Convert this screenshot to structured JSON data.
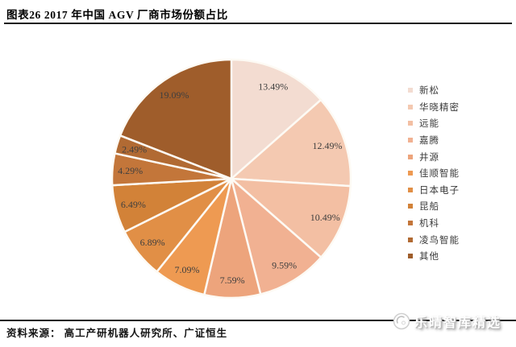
{
  "header": {
    "title": "图表26 2017 年中国 AGV 厂商市场份额占比"
  },
  "footer": {
    "source": "资料来源： 高工产研机器人研究所、广证恒生",
    "watermark": "乐晴智库精选"
  },
  "chart_data": {
    "type": "pie",
    "title": "2017 年中国 AGV 厂商市场份额占比",
    "categories": [
      "新松",
      "华晓精密",
      "远能",
      "嘉腾",
      "井源",
      "佳顺智能",
      "日本电子",
      "昆船",
      "机科",
      "凌鸟智能",
      "其他"
    ],
    "values": [
      13.49,
      12.49,
      10.49,
      9.59,
      7.59,
      7.09,
      6.89,
      6.49,
      4.29,
      2.49,
      19.09
    ],
    "labels": [
      "13.49%",
      "12.49%",
      "10.49%",
      "9.59%",
      "7.59%",
      "7.09%",
      "6.89%",
      "6.49%",
      "4.29%",
      "2.49%",
      "19.09%"
    ],
    "colors": [
      "#f3dcd1",
      "#f4c9b1",
      "#f3bfa3",
      "#f1b192",
      "#eda47c",
      "#ee9a52",
      "#e18f46",
      "#d28238",
      "#c3763a",
      "#b16a33",
      "#9f5d2b"
    ],
    "legend_position": "right",
    "start_angle_deg": 0,
    "direction": "clockwise",
    "label_radius_fraction": 0.85,
    "label_color": "#3f3f3f",
    "slice_divider_color": "#fdfaf4"
  }
}
